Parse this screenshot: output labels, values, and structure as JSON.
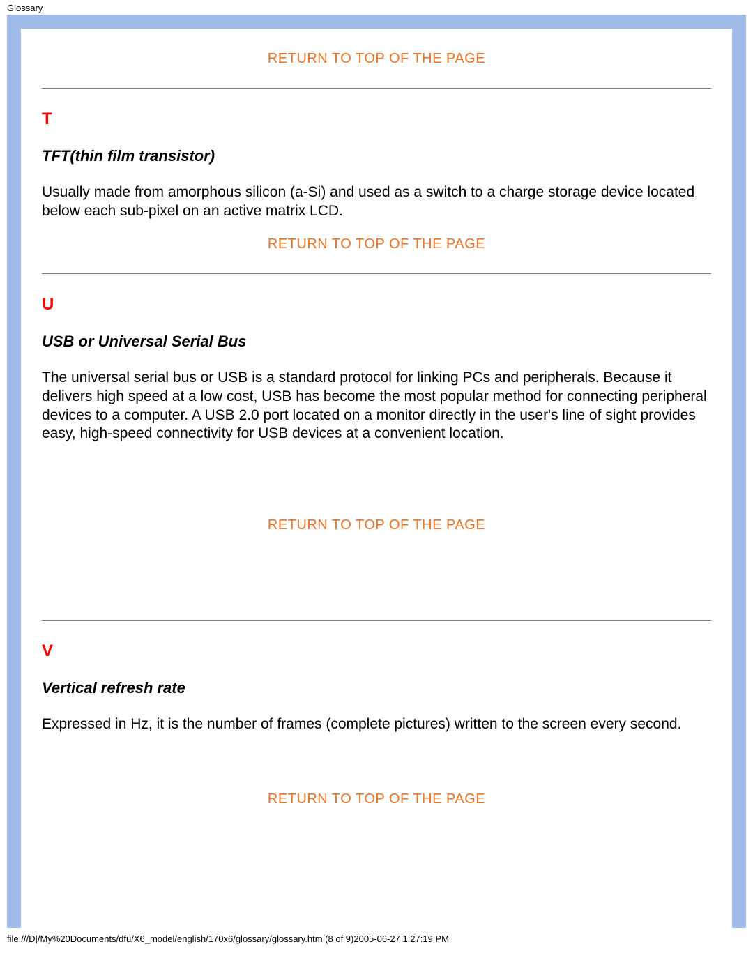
{
  "header": {
    "title": "Glossary"
  },
  "links": {
    "return_top": "RETURN TO TOP OF THE PAGE"
  },
  "sections": {
    "t": {
      "letter": "T",
      "term": "TFT(thin film transistor)",
      "body": "Usually made from amorphous silicon (a-Si) and used as a switch to a charge storage device located below each sub-pixel on an active matrix LCD."
    },
    "u": {
      "letter": "U",
      "term": "USB or Universal Serial Bus",
      "body": "The universal serial bus or USB is a standard protocol for linking PCs and peripherals. Because it delivers high speed at a low cost, USB has become the most popular method for connecting peripheral devices to a computer. A USB 2.0 port located on a monitor directly in the user's line of sight provides easy, high-speed connectivity for USB devices at a convenient location."
    },
    "v": {
      "letter": "V",
      "term": "Vertical refresh rate",
      "body": "Expressed in Hz, it is the number of frames (complete pictures) written to the screen every second."
    }
  },
  "footer": {
    "path": "file:///D|/My%20Documents/dfu/X6_model/english/170x6/glossary/glossary.htm (8 of 9)2005-06-27 1:27:19 PM"
  },
  "colors": {
    "frame_bg": "#9fbce8",
    "link_orange": "#e87428",
    "letter_red": "#ff0000"
  }
}
